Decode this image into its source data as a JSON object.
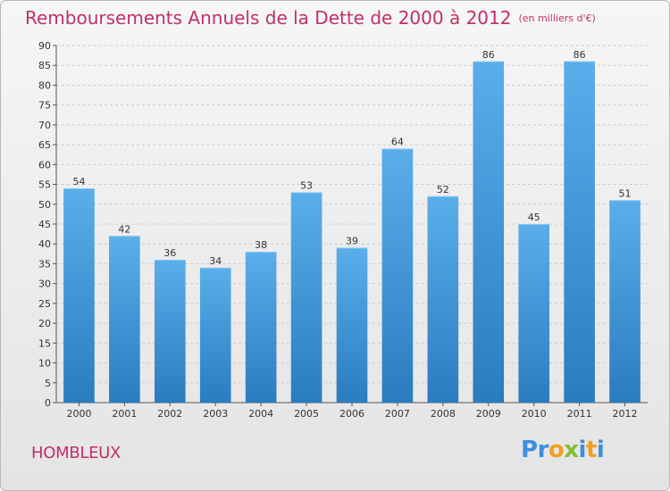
{
  "chart_data": {
    "type": "bar",
    "title": "Remboursements Annuels de la Dette de 2000 à 2012",
    "subtitle": "(en milliers d'€)",
    "categories": [
      "2000",
      "2001",
      "2002",
      "2003",
      "2004",
      "2005",
      "2006",
      "2007",
      "2008",
      "2009",
      "2010",
      "2011",
      "2012"
    ],
    "values": [
      54,
      42,
      36,
      34,
      38,
      53,
      39,
      64,
      52,
      86,
      45,
      86,
      51
    ],
    "ylim": [
      0,
      90
    ],
    "yticks": [
      0,
      5,
      10,
      15,
      20,
      25,
      30,
      35,
      40,
      45,
      50,
      55,
      60,
      65,
      70,
      75,
      80,
      85,
      90
    ],
    "grid": true,
    "bar_color": "#3a8ed4"
  },
  "footer": {
    "commune": "HOMBLEUX",
    "logo_text": "Proxiti",
    "logo_letters": [
      {
        "ch": "P",
        "color": "#3e8ede"
      },
      {
        "ch": "r",
        "color": "#3e8ede"
      },
      {
        "ch": "o",
        "color": "#f0a020"
      },
      {
        "ch": "x",
        "color": "#80c030"
      },
      {
        "ch": "i",
        "color": "#3e8ede"
      },
      {
        "ch": "t",
        "color": "#f0a020"
      },
      {
        "ch": "i",
        "color": "#3e8ede"
      }
    ]
  },
  "colors": {
    "title": "#c0306a",
    "grid": "#cccccc"
  }
}
